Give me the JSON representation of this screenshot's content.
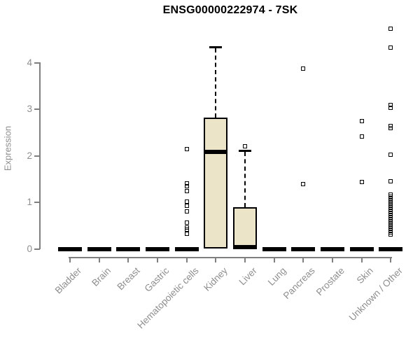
{
  "title": "ENSG00000222974 - 7SK",
  "colors": {
    "title": "#000000",
    "axis_line": "#7f7f7f",
    "axis_label": "#8e8e8e",
    "box_fill": "#ece4c9",
    "box_border": "#000000",
    "median": "#000000",
    "outlier": "#000000",
    "background": "#ffffff"
  },
  "chart_data": {
    "type": "boxplot",
    "title": "ENSG00000222974 - 7SK",
    "xlabel": "",
    "ylabel": "Expression",
    "ylim": [
      -0.1,
      4.8
    ],
    "yticks": [
      0,
      1,
      2,
      3,
      4
    ],
    "grid": false,
    "legend": "none",
    "categories": [
      "Bladder",
      "Brain",
      "Breast",
      "Gastric",
      "Hematopoietic cells",
      "Kidney",
      "Liver",
      "Lung",
      "Pancreas",
      "Prostate",
      "Skin",
      "Unknown / Other"
    ],
    "boxes": [
      {
        "category": "Bladder",
        "q1": 0,
        "median": 0,
        "q3": 0,
        "whisker_low": 0,
        "whisker_high": 0,
        "outliers": []
      },
      {
        "category": "Brain",
        "q1": 0,
        "median": 0,
        "q3": 0,
        "whisker_low": 0,
        "whisker_high": 0,
        "outliers": []
      },
      {
        "category": "Breast",
        "q1": 0,
        "median": 0,
        "q3": 0,
        "whisker_low": 0,
        "whisker_high": 0,
        "outliers": []
      },
      {
        "category": "Gastric",
        "q1": 0,
        "median": 0,
        "q3": 0,
        "whisker_low": 0,
        "whisker_high": 0,
        "outliers": []
      },
      {
        "category": "Hematopoietic cells",
        "q1": 0,
        "median": 0,
        "q3": 0,
        "whisker_low": 0,
        "whisker_high": 0,
        "outliers": [
          2.14,
          1.41,
          1.35,
          1.25,
          1.02,
          0.93,
          0.81,
          0.57,
          0.46,
          0.42,
          0.32
        ]
      },
      {
        "category": "Kidney",
        "q1": 0,
        "median": 2.09,
        "q3": 2.83,
        "whisker_low": 0,
        "whisker_high": 4.34,
        "outliers": []
      },
      {
        "category": "Liver",
        "q1": 0,
        "median": 0.04,
        "q3": 0.89,
        "whisker_low": 0,
        "whisker_high": 2.12,
        "outliers": [
          2.2
        ]
      },
      {
        "category": "Lung",
        "q1": 0,
        "median": 0,
        "q3": 0,
        "whisker_low": 0,
        "whisker_high": 0,
        "outliers": []
      },
      {
        "category": "Pancreas",
        "q1": 0,
        "median": 0,
        "q3": 0,
        "whisker_low": 0,
        "whisker_high": 0,
        "outliers": [
          3.88,
          1.4
        ]
      },
      {
        "category": "Prostate",
        "q1": 0,
        "median": 0,
        "q3": 0,
        "whisker_low": 0,
        "whisker_high": 0,
        "outliers": []
      },
      {
        "category": "Skin",
        "q1": 0,
        "median": 0,
        "q3": 0,
        "whisker_low": 0,
        "whisker_high": 0,
        "outliers": [
          2.75,
          2.42,
          1.44
        ]
      },
      {
        "category": "Unknown / Other",
        "q1": 0,
        "median": 0,
        "q3": 0,
        "whisker_low": 0,
        "whisker_high": 0,
        "outliers": [
          4.73,
          4.33,
          3.1,
          3.04,
          2.65,
          2.6,
          2.03,
          1.46,
          1.17,
          1.12,
          1.08,
          1.03,
          0.99,
          0.94,
          0.9,
          0.85,
          0.81,
          0.76,
          0.71,
          0.67,
          0.62,
          0.58,
          0.53,
          0.49,
          0.44,
          0.4,
          0.35,
          0.31
        ]
      }
    ]
  }
}
